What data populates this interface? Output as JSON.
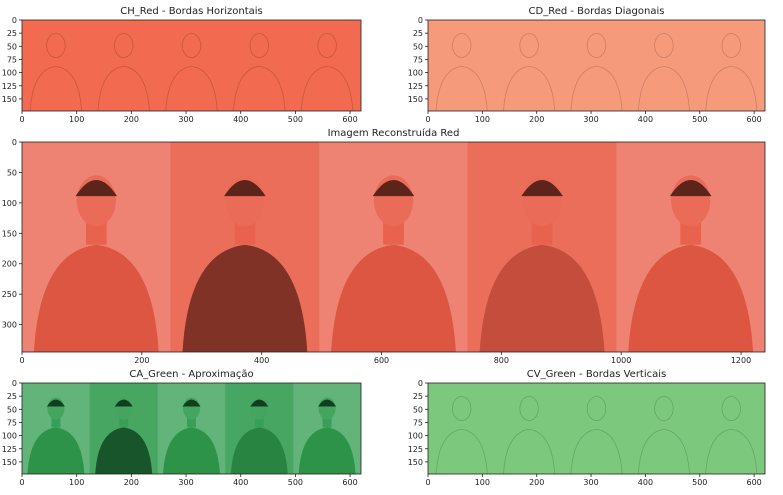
{
  "chart_data": [
    {
      "type": "image",
      "title": "CH_Red - Bordas Horizontais",
      "channel": "red",
      "color": "#f26a4f",
      "xlim": [
        0,
        620
      ],
      "ylim": [
        0,
        173
      ],
      "xticks": [
        0,
        100,
        200,
        300,
        400,
        500,
        600
      ],
      "yticks": [
        0,
        25,
        50,
        75,
        100,
        125,
        150
      ],
      "figures": 5
    },
    {
      "type": "image",
      "title": "CD_Red - Bordas Diagonais",
      "channel": "red",
      "color": "#f69a7c",
      "xlim": [
        0,
        620
      ],
      "ylim": [
        0,
        173
      ],
      "xticks": [
        0,
        100,
        200,
        300,
        400,
        500,
        600
      ],
      "yticks": [
        0,
        25,
        50,
        75,
        100,
        125,
        150
      ],
      "figures": 5
    },
    {
      "type": "image",
      "title": "Imagem Reconstruída Red",
      "channel": "red",
      "color": "#e85a45",
      "xlim": [
        0,
        1240
      ],
      "ylim": [
        0,
        345
      ],
      "xticks": [
        0,
        200,
        400,
        600,
        800,
        1000,
        1200
      ],
      "yticks": [
        0,
        50,
        100,
        150,
        200,
        250,
        300
      ],
      "figures": 5
    },
    {
      "type": "image",
      "title": "CA_Green - Aproximação",
      "channel": "green",
      "color": "#2e9b4d",
      "xlim": [
        0,
        620
      ],
      "ylim": [
        0,
        173
      ],
      "xticks": [
        0,
        100,
        200,
        300,
        400,
        500,
        600
      ],
      "yticks": [
        0,
        25,
        50,
        75,
        100,
        125,
        150
      ],
      "figures": 5
    },
    {
      "type": "image",
      "title": "CV_Green - Bordas Verticais",
      "channel": "green",
      "color": "#7cc97e",
      "xlim": [
        0,
        620
      ],
      "ylim": [
        0,
        173
      ],
      "xticks": [
        0,
        100,
        200,
        300,
        400,
        500,
        600
      ],
      "yticks": [
        0,
        25,
        50,
        75,
        100,
        125,
        150
      ],
      "figures": 5
    }
  ]
}
